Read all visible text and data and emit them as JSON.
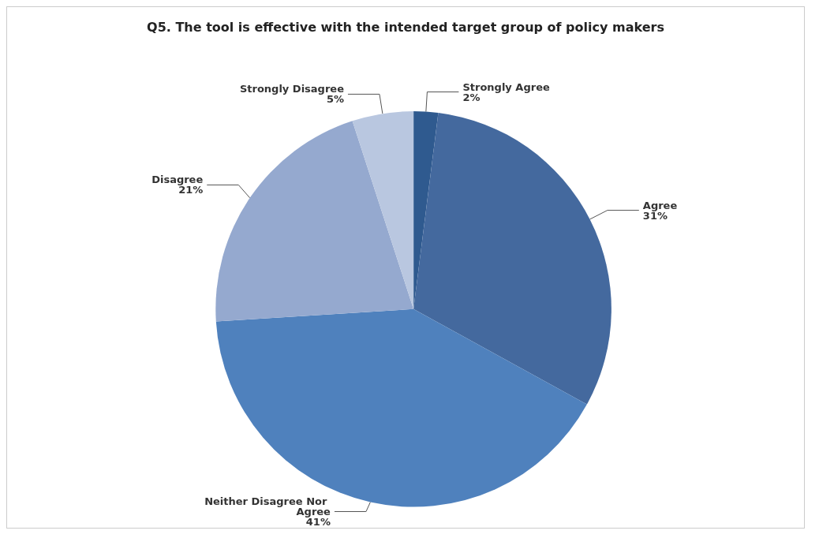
{
  "chart_data": {
    "type": "pie",
    "title": "Q5. The tool is effective with the intended target group of policy makers",
    "categories": [
      "Strongly Agree",
      "Agree",
      "Neither Disagree Nor Agree",
      "Disagree",
      "Strongly Disagree"
    ],
    "values": [
      2,
      31,
      41,
      21,
      5
    ],
    "value_labels": [
      "2%",
      "31%",
      "41%",
      "21%",
      "5%"
    ],
    "colors": [
      "#2f5a8f",
      "#44699e",
      "#4f81bd",
      "#95a9cf",
      "#b9c7e0"
    ],
    "legend": false
  }
}
